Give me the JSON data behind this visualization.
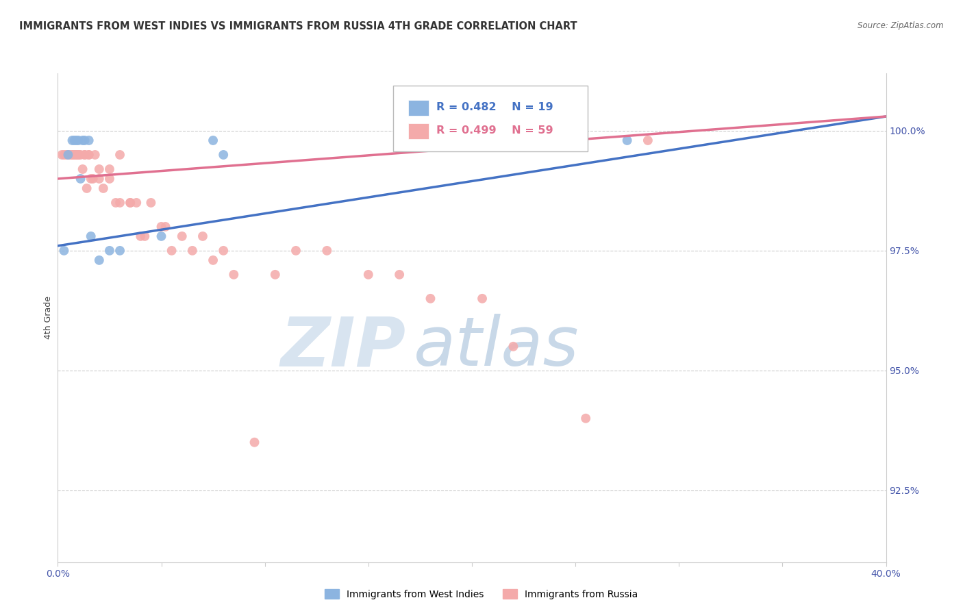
{
  "title": "IMMIGRANTS FROM WEST INDIES VS IMMIGRANTS FROM RUSSIA 4TH GRADE CORRELATION CHART",
  "source": "Source: ZipAtlas.com",
  "ylabel": "4th Grade",
  "ylabel_right_ticks": [
    92.5,
    95.0,
    97.5,
    100.0
  ],
  "ylabel_right_labels": [
    "92.5%",
    "95.0%",
    "97.5%",
    "100.0%"
  ],
  "xmin": 0.0,
  "xmax": 40.0,
  "ymin": 91.0,
  "ymax": 101.2,
  "blue_label": "Immigrants from West Indies",
  "pink_label": "Immigrants from Russia",
  "blue_R": 0.482,
  "blue_N": 19,
  "pink_R": 0.499,
  "pink_N": 59,
  "blue_color": "#8CB4E0",
  "pink_color": "#F4AAAA",
  "blue_line_color": "#4472C4",
  "pink_line_color": "#E07090",
  "watermark_zip": "ZIP",
  "watermark_atlas": "atlas",
  "blue_points_x": [
    0.3,
    0.5,
    0.7,
    0.8,
    0.9,
    1.0,
    1.1,
    1.2,
    1.3,
    1.5,
    1.6,
    2.0,
    2.5,
    3.0,
    5.0,
    7.5,
    8.0,
    18.0,
    27.5
  ],
  "blue_points_y": [
    97.5,
    99.5,
    99.8,
    99.8,
    99.8,
    99.8,
    99.0,
    99.8,
    99.8,
    99.8,
    97.8,
    97.3,
    97.5,
    97.5,
    97.8,
    99.8,
    99.5,
    99.8,
    99.8
  ],
  "pink_points_x": [
    0.2,
    0.3,
    0.4,
    0.5,
    0.5,
    0.6,
    0.7,
    0.7,
    0.8,
    0.8,
    0.9,
    0.9,
    1.0,
    1.0,
    1.0,
    1.1,
    1.2,
    1.3,
    1.3,
    1.4,
    1.5,
    1.5,
    1.6,
    1.7,
    1.8,
    2.0,
    2.0,
    2.2,
    2.5,
    2.5,
    2.8,
    3.0,
    3.0,
    3.5,
    3.5,
    3.8,
    4.0,
    4.2,
    4.5,
    5.0,
    5.2,
    5.5,
    6.0,
    6.5,
    7.0,
    7.5,
    8.0,
    8.5,
    9.5,
    10.5,
    11.5,
    13.0,
    15.0,
    16.5,
    18.0,
    20.5,
    22.0,
    25.5,
    28.5
  ],
  "pink_points_y": [
    99.5,
    99.5,
    99.5,
    99.5,
    99.5,
    99.5,
    99.5,
    99.5,
    99.5,
    99.5,
    99.5,
    99.5,
    99.5,
    99.5,
    99.5,
    99.5,
    99.2,
    99.5,
    99.5,
    98.8,
    99.5,
    99.5,
    99.0,
    99.0,
    99.5,
    99.0,
    99.2,
    98.8,
    99.0,
    99.2,
    98.5,
    98.5,
    99.5,
    98.5,
    98.5,
    98.5,
    97.8,
    97.8,
    98.5,
    98.0,
    98.0,
    97.5,
    97.8,
    97.5,
    97.8,
    97.3,
    97.5,
    97.0,
    93.5,
    97.0,
    97.5,
    97.5,
    97.0,
    97.0,
    96.5,
    96.5,
    95.5,
    94.0,
    99.8
  ],
  "blue_line_x0": 0.0,
  "blue_line_y0": 97.6,
  "blue_line_x1": 40.0,
  "blue_line_y1": 100.3,
  "pink_line_x0": 0.0,
  "pink_line_y0": 99.0,
  "pink_line_x1": 40.0,
  "pink_line_y1": 100.3
}
